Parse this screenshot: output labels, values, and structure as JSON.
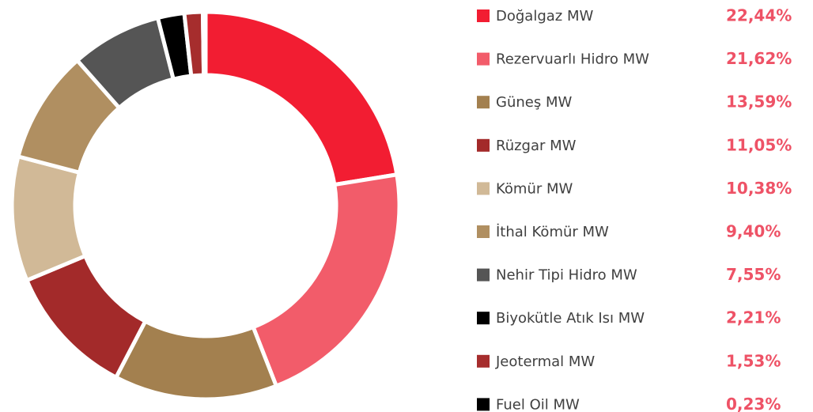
{
  "chart_data": {
    "type": "donut",
    "categories": [
      "Doğalgaz MW",
      "Rezervuarlı Hidro MW",
      "Güneş MW",
      "Rüzgar MW",
      "Kömür MW",
      "İthal Kömür MW",
      "Nehir Tipi Hidro MW",
      "Biyokütle Atık Isı MW",
      "Jeotermal MW",
      "Fuel Oil MW"
    ],
    "values": [
      22.44,
      21.62,
      13.59,
      11.05,
      10.38,
      9.4,
      7.55,
      2.21,
      1.53,
      0.23
    ],
    "value_labels": [
      "22,44%",
      "21,62%",
      "13,59%",
      "11,05%",
      "10,38%",
      "9,40%",
      "7,55%",
      "2,21%",
      "1,53%",
      "0,23%"
    ],
    "colors": [
      "#f21d32",
      "#f25c6a",
      "#a3804f",
      "#a32a2a",
      "#d1b997",
      "#b08f61",
      "#555555",
      "#000000",
      "#a62d2d",
      "#000000"
    ],
    "legend": "right"
  }
}
